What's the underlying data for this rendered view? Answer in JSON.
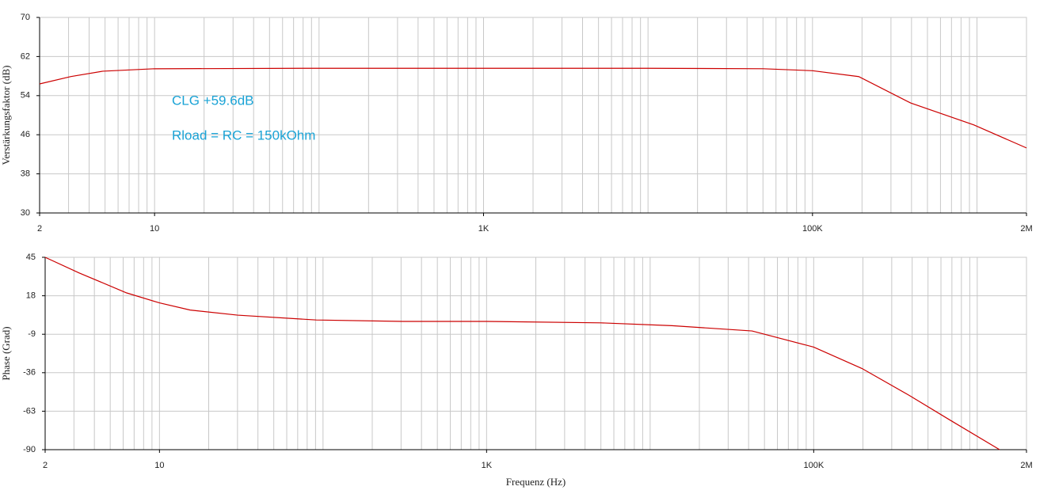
{
  "chart_data": [
    {
      "type": "line",
      "xscale": "log",
      "ylabel": "Verstärkungsfaktor (dB)",
      "xlim": [
        2,
        2000000
      ],
      "xticks": [
        2,
        10,
        {
          "value": 1000,
          "label": "1K"
        },
        {
          "value": 100000,
          "label": "100K"
        },
        {
          "value": 2000000,
          "label": "2M"
        }
      ],
      "ylim": [
        30,
        70
      ],
      "yticks": [
        30,
        38,
        46,
        54,
        62,
        70
      ],
      "grid": true,
      "annotations": [
        "CLG +59.6dB",
        "Rload = RC = 150kOhm"
      ],
      "x": [
        2,
        3.1,
        4.85,
        10,
        100,
        1000,
        10000,
        50000,
        100000,
        191000,
        395000,
        958000,
        2000000
      ],
      "series": [
        {
          "color": "#cc0000",
          "values": [
            56.4,
            57.9,
            59,
            59.5,
            59.6,
            59.6,
            59.6,
            59.5,
            59.1,
            57.9,
            52.5,
            48,
            43.3
          ]
        }
      ]
    },
    {
      "type": "line",
      "xscale": "log",
      "ylabel": "Phase (Grad)",
      "xlabel": "Frequenz (Hz)",
      "xlim": [
        2,
        2000000
      ],
      "xticks": [
        2,
        10,
        {
          "value": 1000,
          "label": "1K"
        },
        {
          "value": 100000,
          "label": "100K"
        },
        {
          "value": 2000000,
          "label": "2M"
        }
      ],
      "ylim": [
        -90,
        45
      ],
      "yticks": [
        45,
        18,
        -9,
        -36,
        -63,
        -90
      ],
      "grid": true,
      "x": [
        2,
        3.23,
        6.3,
        10,
        15.4,
        30,
        91,
        310,
        1000,
        5000,
        13600,
        42000,
        100000,
        197000,
        385000,
        676000,
        1370000
      ],
      "series": [
        {
          "color": "#cc0000",
          "values": [
            45,
            34,
            20,
            13,
            8,
            4.4,
            1,
            0,
            0,
            -1,
            -3,
            -6.7,
            -18,
            -33,
            -52,
            -69,
            -90
          ]
        }
      ]
    }
  ]
}
